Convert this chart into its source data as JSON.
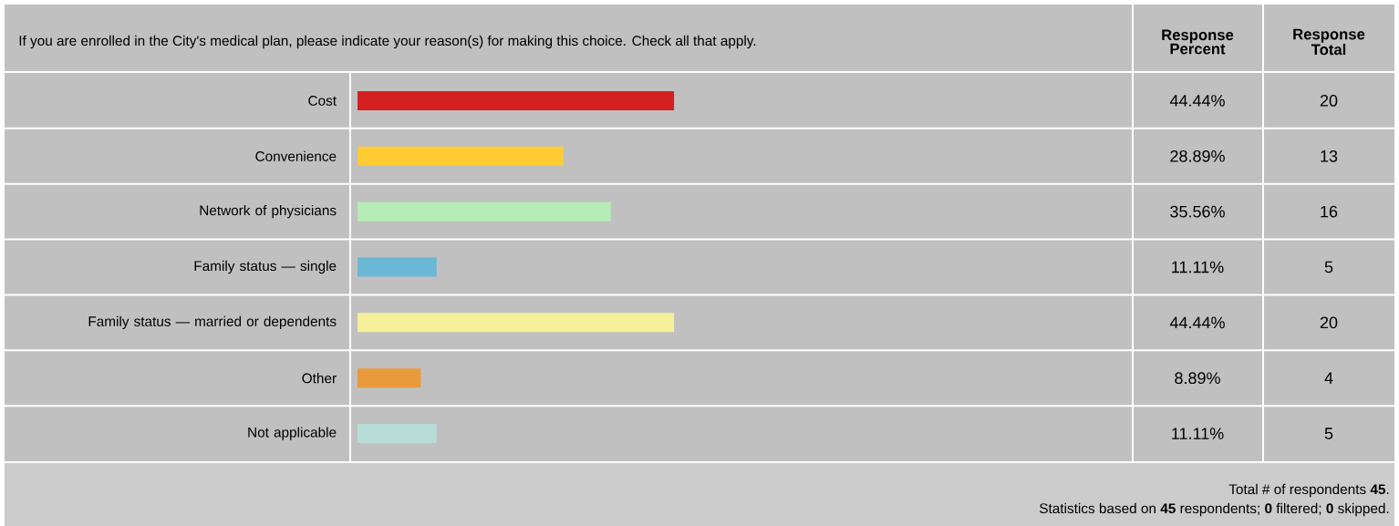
{
  "chart_data": {
    "type": "bar",
    "orientation": "horizontal",
    "title": "If you are enrolled in the City's medical plan, please indicate your reason(s) for making this choice. Check all that apply.",
    "categories": [
      "Cost",
      "Convenience",
      "Network of physicians",
      "Family status — single",
      "Family status — married or dependents",
      "Other",
      "Not applicable"
    ],
    "values": [
      44.44,
      28.89,
      35.56,
      11.11,
      44.44,
      8.89,
      11.11
    ],
    "colors": [
      "#d42020",
      "#ffcc33",
      "#b6ecb6",
      "#6bb8d6",
      "#f6f09a",
      "#e99a3a",
      "#b8dcd8"
    ],
    "value_labels": [
      "44.44%",
      "28.89%",
      "35.56%",
      "11.11%",
      "44.44%",
      "8.89%",
      "11.11%"
    ],
    "tick_labels": "y",
    "annotations": [
      "Response Percent",
      "Response Total",
      "Total # of respondents **45**.",
      "Statistics based on **45** respondents; **0** filtered; **0** skipped.",
      "20",
      "13",
      "16",
      "5",
      "20",
      "4",
      "5"
    ]
  }
}
